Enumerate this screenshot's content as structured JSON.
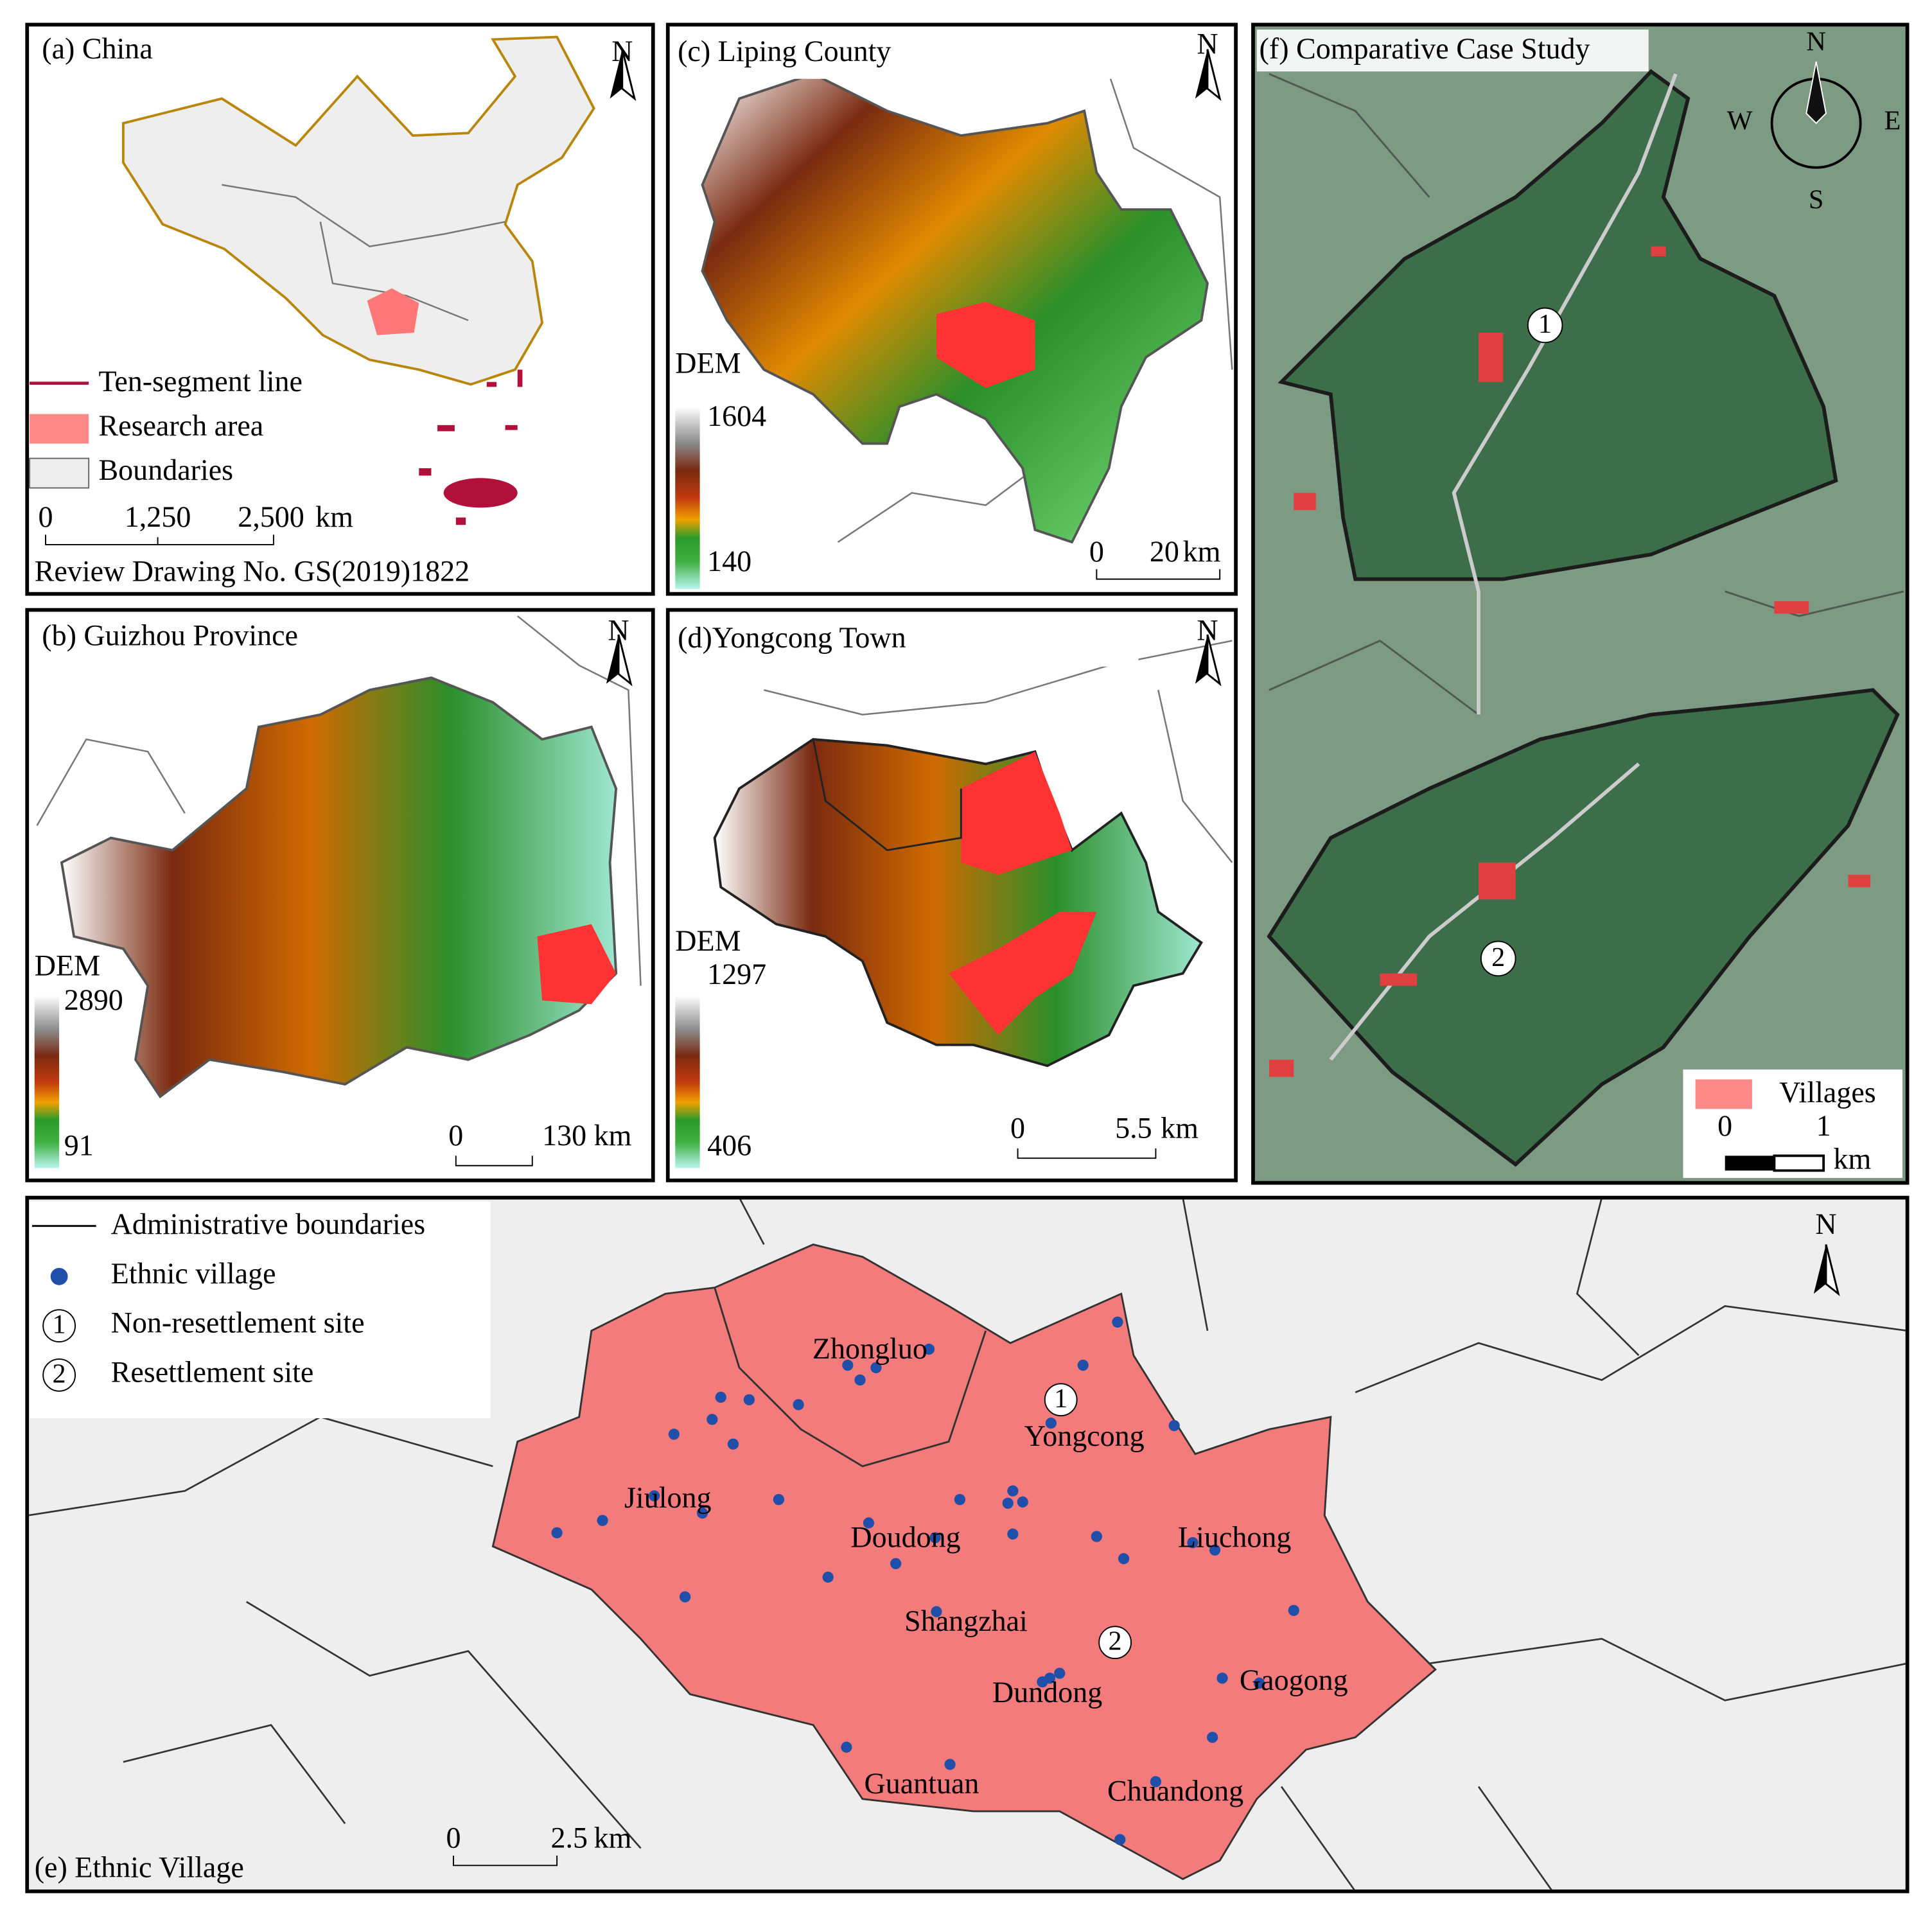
{
  "panels": {
    "a": {
      "title": "(a) China",
      "north": "N",
      "legend": [
        "Ten-segment line",
        "Research area",
        "Boundaries"
      ],
      "scale": {
        "ticks": [
          "0",
          "1,250",
          "2,500"
        ],
        "unit": "km"
      },
      "note": "Review Drawing No. GS(2019)1822"
    },
    "b": {
      "title": "(b) Guizhou Province",
      "north": "N",
      "dem": {
        "label": "DEM",
        "max": 2890,
        "min": 91
      },
      "scale": {
        "ticks": [
          "0",
          "130"
        ],
        "unit": "km"
      }
    },
    "c": {
      "title": "(c) Liping County",
      "north": "N",
      "dem": {
        "label": "DEM",
        "max": 1604,
        "min": 140
      },
      "scale": {
        "ticks": [
          "0",
          "20"
        ],
        "unit": "km"
      }
    },
    "d": {
      "title": "(d)Yongcong Town",
      "north": "N",
      "dem": {
        "label": "DEM",
        "max": 1297,
        "min": 406
      },
      "scale": {
        "ticks": [
          "0",
          "5.5"
        ],
        "unit": "km"
      }
    },
    "f": {
      "title": "(f) Comparative Case Study",
      "compass": {
        "n": "N",
        "e": "E",
        "s": "S",
        "w": "W"
      },
      "markers": [
        "1",
        "2"
      ],
      "legend": "Villages",
      "scale": {
        "ticks": [
          "0",
          "1"
        ],
        "unit": "km"
      }
    },
    "e": {
      "title": "(e) Ethnic Village",
      "north": "N",
      "legend": [
        {
          "symbol": "",
          "label": "Administrative boundaries"
        },
        {
          "symbol": "",
          "label": "Ethnic village"
        },
        {
          "symbol": "1",
          "label": "Non-resettlement site"
        },
        {
          "symbol": "2",
          "label": "Resettlement site"
        }
      ],
      "towns": [
        "Zhongluo",
        "Yongcong",
        "Jiulong",
        "Doudong",
        "Liuchong",
        "Shangzhai",
        "Dundong",
        "Gaogong",
        "Guantuan",
        "Chuandong"
      ],
      "markers": [
        "1",
        "2"
      ],
      "scale": {
        "ticks": [
          "0",
          "2.5"
        ],
        "unit": "km"
      }
    }
  }
}
